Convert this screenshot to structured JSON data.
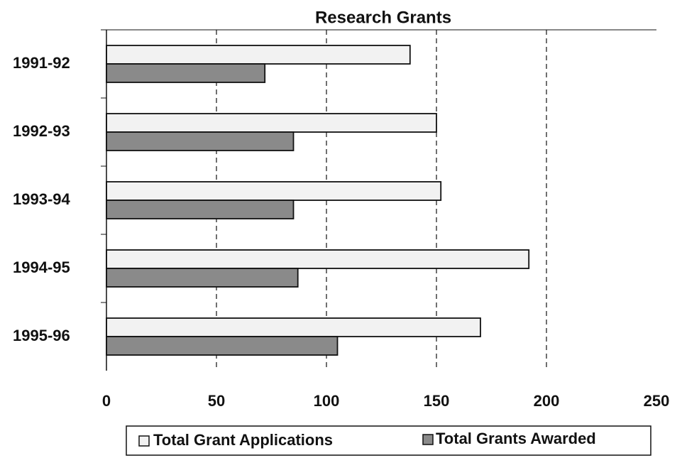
{
  "chart_data": {
    "type": "hbar",
    "title": "Research Grants",
    "categories": [
      "1991-92",
      "1992-93",
      "1993-94",
      "1994-95",
      "1995-96"
    ],
    "series": [
      {
        "name": "Total Grant Applications",
        "color": "#f2f2f2",
        "values": [
          138,
          150,
          152,
          192,
          170
        ]
      },
      {
        "name": "Total Grants Awarded",
        "color": "#8a8a8a",
        "values": [
          72,
          85,
          85,
          87,
          105
        ]
      }
    ],
    "xlim": [
      0,
      250
    ],
    "xticks": [
      0,
      50,
      100,
      150,
      200,
      250
    ],
    "grid": true,
    "legend": "bottom"
  }
}
